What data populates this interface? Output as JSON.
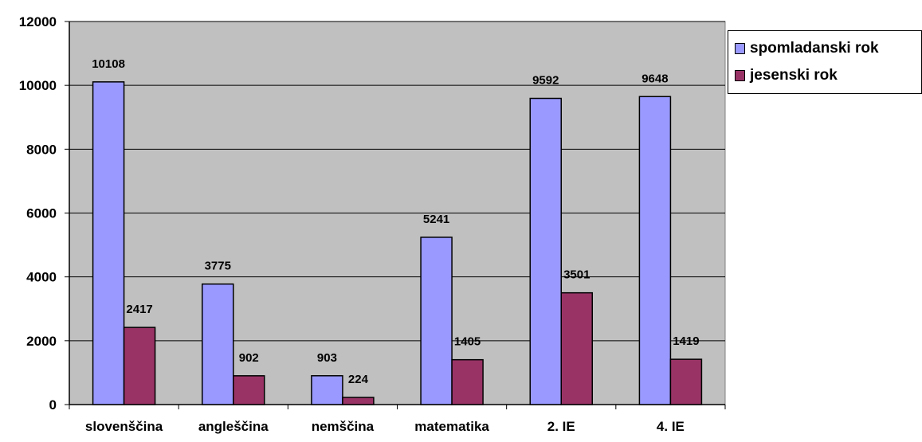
{
  "chart_data": {
    "type": "bar",
    "categories": [
      "slovenščina",
      "angleščina",
      "nemščina",
      "matematika",
      "2. IE",
      "4. IE"
    ],
    "series": [
      {
        "name": "spomladanski rok",
        "values": [
          10108,
          3775,
          903,
          5241,
          9592,
          9648
        ]
      },
      {
        "name": "jesenski rok",
        "values": [
          2417,
          902,
          224,
          1405,
          3501,
          1419
        ]
      }
    ],
    "title": "",
    "xlabel": "",
    "ylabel": "",
    "ylim": [
      0,
      12000
    ],
    "yticks": [
      "0",
      "2000",
      "4000",
      "6000",
      "8000",
      "10000",
      "12000"
    ],
    "grid": true,
    "legend_position": "top-right",
    "colors": {
      "series": [
        "#9999FF",
        "#993366"
      ],
      "plot_background": "#C0C0C0",
      "grid": "#000000"
    }
  }
}
